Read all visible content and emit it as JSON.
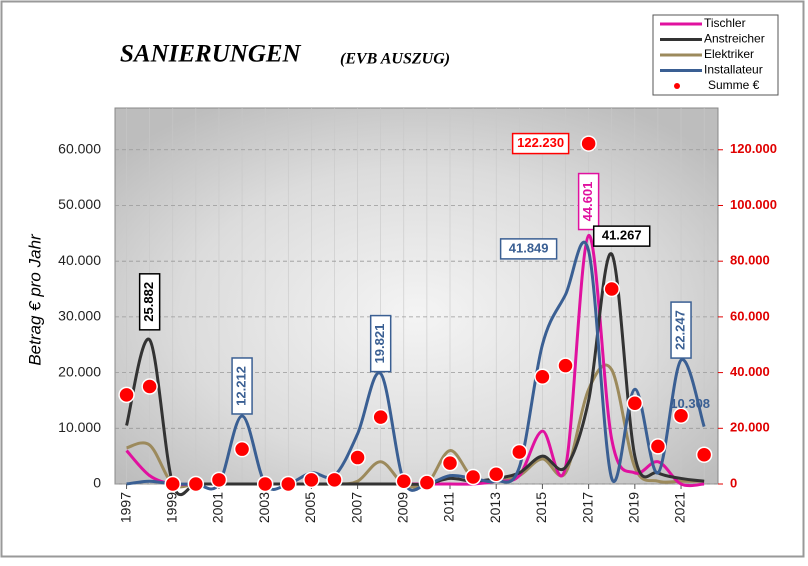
{
  "chart_data": {
    "type": "line",
    "title": "SANIERUNGEN",
    "subtitle": "(EVB AUSZUG)",
    "y_label": "Betrag  €  pro  Jahr",
    "x": [
      1997,
      1998,
      1999,
      2000,
      2001,
      2002,
      2003,
      2004,
      2005,
      2006,
      2007,
      2008,
      2009,
      2010,
      2011,
      2012,
      2013,
      2014,
      2015,
      2016,
      2017,
      2018,
      2019,
      2020,
      2021,
      2022
    ],
    "xlim": [
      1996.5,
      2022.6
    ],
    "xticks": [
      1997,
      1999,
      2001,
      2003,
      2005,
      2007,
      2009,
      2011,
      2013,
      2015,
      2017,
      2019,
      2021
    ],
    "ylim": [
      0,
      67500
    ],
    "yticks": [
      0,
      {
        "value": 10000,
        "label": "10.000"
      },
      {
        "value": 20000,
        "label": "20.000"
      },
      {
        "value": 30000,
        "label": "30.000"
      },
      {
        "value": 40000,
        "label": "40.000"
      },
      {
        "value": 50000,
        "label": "50.000"
      },
      {
        "value": 60000,
        "label": "60.000"
      }
    ],
    "y2lim": [
      0,
      135000
    ],
    "y2ticks": [
      0,
      {
        "value": 20000,
        "label": "20.000"
      },
      {
        "value": 40000,
        "label": "40.000"
      },
      {
        "value": 60000,
        "label": "60.000"
      },
      {
        "value": 80000,
        "label": "80.000"
      },
      {
        "value": 100000,
        "label": "100.000"
      },
      {
        "value": 120000,
        "label": "120.000"
      }
    ],
    "grid": true,
    "legend": "upper right",
    "series": [
      {
        "name": "Tischler",
        "color": "#e0119f",
        "style": "line",
        "values": [
          6000,
          1500,
          0,
          0,
          0,
          0,
          0,
          0,
          0,
          0,
          0,
          0,
          0,
          0,
          0,
          0,
          500,
          1500,
          9500,
          3000,
          44601,
          8000,
          2000,
          4000,
          0,
          0
        ],
        "value_labels": [
          null,
          null,
          null,
          null,
          null,
          null,
          null,
          null,
          null,
          null,
          null,
          null,
          null,
          null,
          null,
          null,
          null,
          null,
          null,
          null,
          "44.601",
          null,
          null,
          null,
          null,
          null
        ]
      },
      {
        "name": "Anstreicher",
        "color": "#333333",
        "style": "line",
        "values": [
          10500,
          25882,
          0,
          0,
          0,
          0,
          0,
          0,
          0,
          0,
          0,
          0,
          0,
          0,
          1000,
          500,
          1000,
          2000,
          5000,
          3000,
          15000,
          41267,
          5000,
          2000,
          1000,
          500
        ],
        "value_labels": [
          null,
          "25.882",
          null,
          null,
          null,
          null,
          null,
          null,
          null,
          null,
          null,
          null,
          null,
          null,
          null,
          null,
          null,
          null,
          null,
          null,
          null,
          "41.267",
          null,
          null,
          null,
          null
        ]
      },
      {
        "name": "Elektriker",
        "color": "#9c8a5c",
        "style": "line",
        "values": [
          6500,
          7000,
          0,
          0,
          0,
          0,
          0,
          0,
          0,
          0,
          500,
          4000,
          0,
          0,
          6000,
          1000,
          500,
          1500,
          4500,
          2000,
          17000,
          20500,
          3000,
          500,
          500,
          500
        ],
        "value_labels": [
          null,
          null,
          null,
          null,
          null,
          null,
          null,
          null,
          null,
          null,
          null,
          null,
          null,
          null,
          null,
          null,
          null,
          null,
          null,
          null,
          null,
          null,
          null,
          null,
          null,
          null
        ]
      },
      {
        "name": "Installateur",
        "color": "#3a5f93",
        "style": "line",
        "values": [
          0,
          500,
          0,
          0,
          0,
          12212,
          0,
          0,
          2000,
          1500,
          9000,
          19821,
          500,
          0,
          1500,
          1000,
          500,
          3000,
          25000,
          34000,
          41849,
          1000,
          17000,
          2000,
          22247,
          10308
        ],
        "value_labels": [
          null,
          null,
          null,
          null,
          null,
          "12.212",
          null,
          null,
          null,
          null,
          null,
          "19.821",
          null,
          null,
          null,
          null,
          null,
          null,
          null,
          null,
          "41.849",
          null,
          null,
          null,
          "22.247",
          "10.308"
        ]
      },
      {
        "name": "Summe €",
        "color": "#ff0000",
        "style": "dot",
        "axis": "y2",
        "values": [
          32000,
          35000,
          0,
          0,
          1500,
          12500,
          0,
          0,
          1500,
          1500,
          9500,
          24000,
          1000,
          500,
          7500,
          2500,
          3500,
          11500,
          38500,
          42500,
          122230,
          70000,
          29000,
          13500,
          24500,
          10500
        ],
        "value_labels": [
          null,
          null,
          null,
          null,
          null,
          null,
          null,
          null,
          null,
          null,
          null,
          null,
          null,
          null,
          null,
          null,
          null,
          null,
          null,
          null,
          "122.230",
          null,
          null,
          null,
          null,
          null
        ]
      }
    ]
  }
}
